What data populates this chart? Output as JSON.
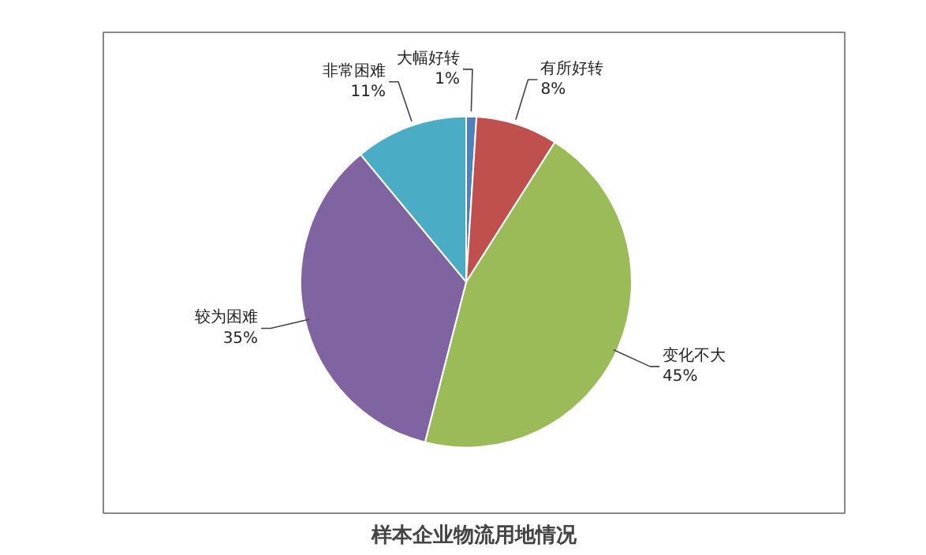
{
  "chart_data": {
    "type": "pie",
    "title": "样本企业物流用地情况",
    "categories": [
      "大幅好转",
      "有所好转",
      "变化不大",
      "较为困难",
      "非常困难"
    ],
    "values": [
      1,
      8,
      45,
      35,
      11
    ],
    "colors": [
      "#4f81bd",
      "#c0504d",
      "#9bbb59",
      "#8064a2",
      "#4bacc6"
    ],
    "value_labels": [
      "1%",
      "8%",
      "45%",
      "35%",
      "11%"
    ]
  }
}
